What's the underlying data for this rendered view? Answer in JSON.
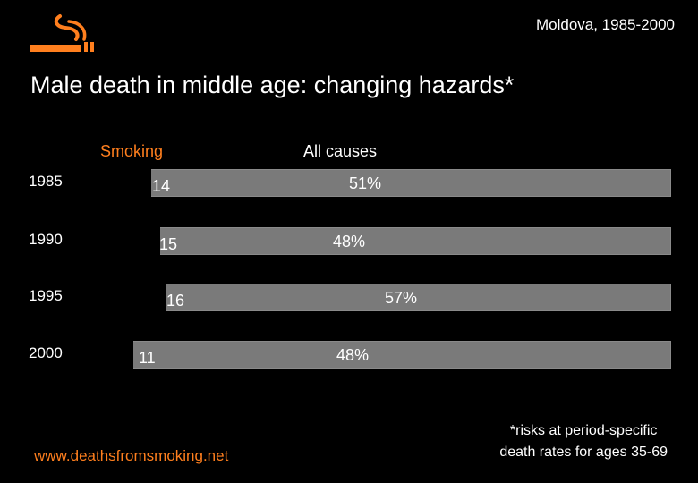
{
  "header": {
    "region": "Moldova, 1985-2000",
    "title": "Male death in middle age: changing hazards*",
    "logo_icon": "smoking-cigarette-icon",
    "accent_color": "#ff7f1e"
  },
  "chart_data": {
    "type": "bar",
    "orientation": "horizontal",
    "categories": [
      "1985",
      "1990",
      "1995",
      "2000"
    ],
    "series": [
      {
        "name": "Smoking",
        "values": [
          14,
          15,
          16,
          11
        ],
        "color": "#000000"
      },
      {
        "name": "All causes",
        "values": [
          51,
          48,
          57,
          48
        ],
        "unit": "%",
        "color": "#7a7a7a"
      }
    ],
    "value_labels": {
      "smoking": [
        "14",
        "15",
        "16",
        "11"
      ],
      "all_causes": [
        "51%",
        "48%",
        "57%",
        "48%"
      ]
    },
    "column_headers": {
      "smoking": "Smoking",
      "all_causes": "All causes"
    }
  },
  "footer": {
    "url": "www.deathsfromsmoking.net",
    "footnote_line1": "*risks at period-specific",
    "footnote_line2": "death rates for ages 35-69"
  }
}
